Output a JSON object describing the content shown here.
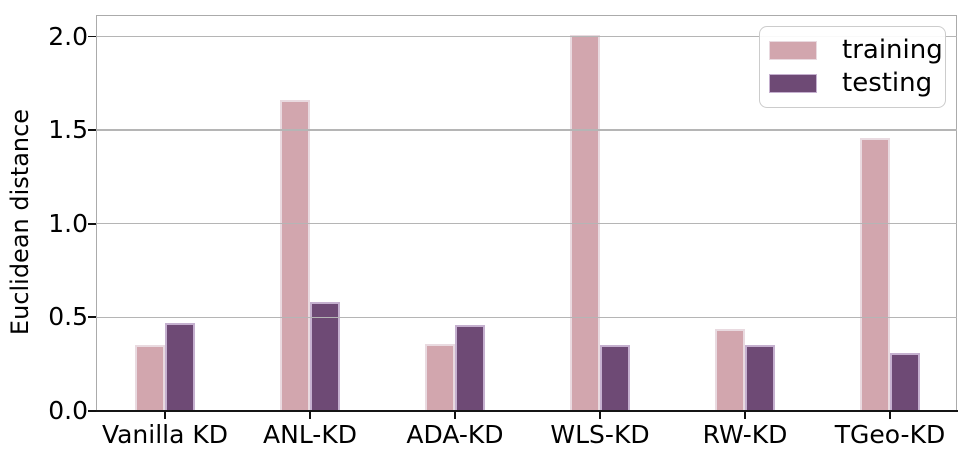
{
  "chart_data": {
    "type": "bar",
    "title": "",
    "categories": [
      "Vanilla KD",
      "ANL-KD",
      "ADA-KD",
      "WLS-KD",
      "RW-KD",
      "TGeo-KD"
    ],
    "series": [
      {
        "name": "training",
        "color": "#d2a6ae",
        "edge_color": "#e9dae0",
        "values": [
          0.35,
          1.66,
          0.36,
          2.01,
          0.44,
          1.46
        ]
      },
      {
        "name": "testing",
        "color": "#6e4a75",
        "edge_color": "#c5b0cf",
        "values": [
          0.47,
          0.58,
          0.46,
          0.35,
          0.35,
          0.31
        ]
      }
    ],
    "xlabel": "",
    "ylabel": "Euclidean distance",
    "yticks": [
      0,
      0.5,
      1,
      1.5,
      2
    ],
    "ytick_labels": [
      "0.0",
      "0.5",
      "1.0",
      "1.5",
      "2.0"
    ],
    "ylim": [
      0,
      2.115
    ],
    "grid": true,
    "grid_on_top_of_bars": true,
    "grid_color": "#b5b5b5",
    "axis_color": "#ababab",
    "baseline_color": "#151515",
    "text_color": "#000000",
    "background": "#ffffff",
    "legend_position": "upper right"
  }
}
